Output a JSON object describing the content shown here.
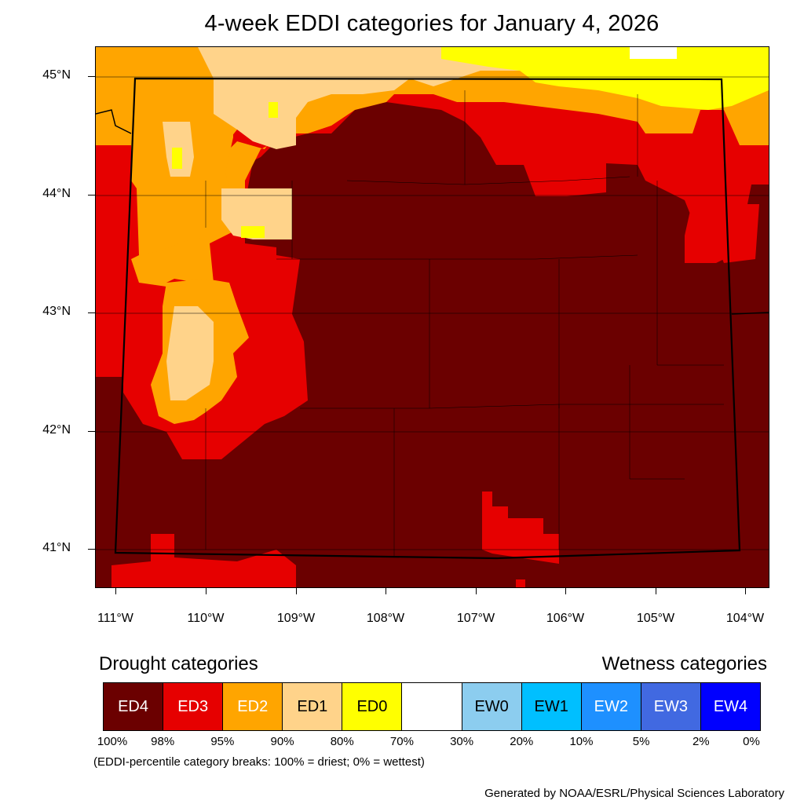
{
  "title": "4-week EDDI categories for January 4, 2026",
  "lat_labels": [
    "45°N",
    "44°N",
    "43°N",
    "42°N",
    "41°N"
  ],
  "lon_labels": [
    "111°W",
    "110°W",
    "109°W",
    "108°W",
    "107°W",
    "106°W",
    "105°W",
    "104°W"
  ],
  "legend": {
    "drought_heading": "Drought categories",
    "wetness_heading": "Wetness categories",
    "categories": [
      {
        "label": "ED4",
        "color": "#6b0000",
        "text_color": "#ffffff"
      },
      {
        "label": "ED3",
        "color": "#e60000",
        "text_color": "#ffffff"
      },
      {
        "label": "ED2",
        "color": "#ffa500",
        "text_color": "#ffffff"
      },
      {
        "label": "ED1",
        "color": "#ffd38a",
        "text_color": "#000000"
      },
      {
        "label": "ED0",
        "color": "#ffff00",
        "text_color": "#000000"
      },
      {
        "label": "",
        "color": "#ffffff",
        "text_color": "#000000"
      },
      {
        "label": "EW0",
        "color": "#8ccdef",
        "text_color": "#000000"
      },
      {
        "label": "EW1",
        "color": "#00bfff",
        "text_color": "#000000"
      },
      {
        "label": "EW2",
        "color": "#1e90ff",
        "text_color": "#ffffff"
      },
      {
        "label": "EW3",
        "color": "#4169e1",
        "text_color": "#ffffff"
      },
      {
        "label": "EW4",
        "color": "#0000ff",
        "text_color": "#ffffff"
      }
    ],
    "breaks": [
      "100%",
      "98%",
      "95%",
      "90%",
      "80%",
      "70%",
      "30%",
      "20%",
      "10%",
      "5%",
      "2%",
      "0%"
    ],
    "note": "(EDDI-percentile category breaks: 100% = driest; 0% = wettest)"
  },
  "credit": "Generated by NOAA/ESRL/Physical Sciences Laboratory"
}
